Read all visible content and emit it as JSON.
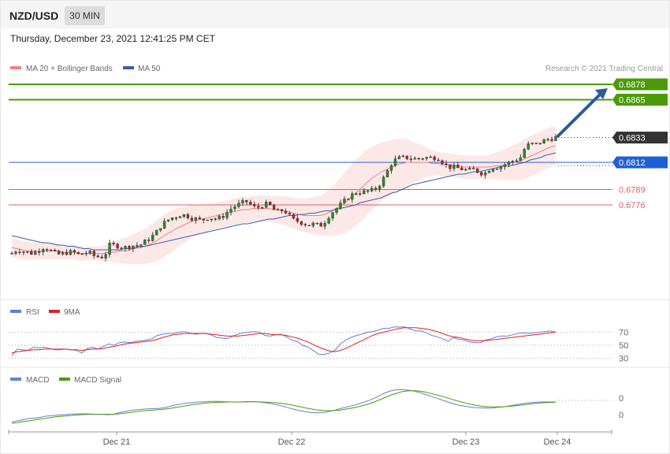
{
  "header": {
    "symbol": "NZD/USD",
    "timeframe": "30 MIN",
    "datetime": "Thursday, December 23, 2021 12:41:25 PM CET"
  },
  "legend": {
    "ma20": "MA 20 + Bollinger Bands",
    "ma50": "MA 50",
    "rsi": "RSI",
    "rsi_ma": "9MA",
    "macd": "MACD",
    "macd_signal": "MACD Signal"
  },
  "credit": "Research © 2021 Trading Central",
  "colors": {
    "ma20": "#f08080",
    "bands_fill": "#fde2e2",
    "ma50": "#3a5fa8",
    "resistance": "#4c9a0a",
    "pivot": "#1f5fd6",
    "support": "#e06060",
    "current": "#333333",
    "arrow": "#2d5a9a",
    "rsi": "#6080d8",
    "rsi_ma": "#e02020",
    "macd": "#6080d8",
    "macd_signal": "#4c9a0a"
  },
  "chart_data": [
    {
      "type": "candlestick",
      "panel": "price",
      "x_ticks": [
        "Dec 21",
        "Dec 22",
        "Dec 23",
        "Dec 24"
      ],
      "ylim": [
        0.6715,
        0.6895
      ],
      "levels": [
        {
          "value": 0.6878,
          "label": "0.6878",
          "kind": "resistance"
        },
        {
          "value": 0.6865,
          "label": "0.6865",
          "kind": "resistance"
        },
        {
          "value": 0.6833,
          "label": "0.6833",
          "kind": "current"
        },
        {
          "value": 0.6812,
          "label": "0.6812",
          "kind": "pivot"
        },
        {
          "value": 0.6789,
          "label": "0.6789",
          "kind": "support"
        },
        {
          "value": 0.6776,
          "label": "0.6776",
          "kind": "support"
        }
      ],
      "price_path": [
        0.6735,
        0.6738,
        0.6737,
        0.6736,
        0.6735,
        0.6737,
        0.674,
        0.6739,
        0.6736,
        0.6734,
        0.6735,
        0.6736,
        0.6736,
        0.6734,
        0.6735,
        0.6736,
        0.6733,
        0.6732,
        0.6732,
        0.6742,
        0.6742,
        0.6741,
        0.674,
        0.6741,
        0.6742,
        0.6742,
        0.6745,
        0.6748,
        0.6752,
        0.6758,
        0.6762,
        0.6765,
        0.6766,
        0.6768,
        0.6767,
        0.6765,
        0.6764,
        0.6763,
        0.6765,
        0.6765,
        0.6764,
        0.6766,
        0.677,
        0.6774,
        0.6776,
        0.6778,
        0.6779,
        0.6774,
        0.6774,
        0.6776,
        0.6777,
        0.6772,
        0.677,
        0.6772,
        0.6767,
        0.6763,
        0.6762,
        0.676,
        0.6759,
        0.676,
        0.6758,
        0.6762,
        0.6768,
        0.6772,
        0.6776,
        0.678,
        0.6784,
        0.6786,
        0.6787,
        0.6787,
        0.6788,
        0.679,
        0.6795,
        0.6803,
        0.6811,
        0.6815,
        0.6816,
        0.6816,
        0.6815,
        0.6815,
        0.6816,
        0.6816,
        0.6816,
        0.6816,
        0.6812,
        0.6808,
        0.6808,
        0.6807,
        0.6806,
        0.6805,
        0.6806,
        0.6804,
        0.6802,
        0.6806,
        0.6808,
        0.6808,
        0.681,
        0.6812,
        0.6814,
        0.6815,
        0.6824,
        0.6828,
        0.6827,
        0.6829,
        0.6831,
        0.6832,
        0.6833
      ],
      "ma20": [
        0.674,
        0.6739,
        0.6738,
        0.6737,
        0.6737,
        0.6737,
        0.6737,
        0.6737,
        0.6737,
        0.6737,
        0.6736,
        0.6736,
        0.6736,
        0.6735,
        0.6735,
        0.6735,
        0.6735,
        0.6735,
        0.6735,
        0.6736,
        0.6736,
        0.6737,
        0.6737,
        0.6738,
        0.6739,
        0.674,
        0.6741,
        0.6743,
        0.6745,
        0.6748,
        0.6751,
        0.6753,
        0.6756,
        0.6758,
        0.676,
        0.6762,
        0.6763,
        0.6764,
        0.6765,
        0.6766,
        0.6767,
        0.6768,
        0.6769,
        0.677,
        0.6771,
        0.6772,
        0.6772,
        0.6773,
        0.6773,
        0.6773,
        0.6773,
        0.6772,
        0.6772,
        0.6771,
        0.677,
        0.6769,
        0.6768,
        0.6767,
        0.6767,
        0.6767,
        0.6767,
        0.6768,
        0.677,
        0.6772,
        0.6775,
        0.6778,
        0.6782,
        0.6786,
        0.679,
        0.6794,
        0.6798,
        0.6801,
        0.6804,
        0.6806,
        0.6808,
        0.681,
        0.6811,
        0.6812,
        0.6812,
        0.6812,
        0.6812,
        0.6812,
        0.6811,
        0.6811,
        0.681,
        0.681,
        0.6809,
        0.6809,
        0.6808,
        0.6808,
        0.6808,
        0.6808,
        0.6808,
        0.6808,
        0.6809,
        0.6809,
        0.681,
        0.6811,
        0.6812,
        0.6813,
        0.6815,
        0.6817,
        0.6819,
        0.6821,
        0.6823,
        0.6825,
        0.6826
      ],
      "band_width": [
        0.0008,
        0.0008,
        0.0008,
        0.0008,
        0.0007,
        0.0007,
        0.0007,
        0.0007,
        0.0007,
        0.0007,
        0.0006,
        0.0006,
        0.0006,
        0.0006,
        0.0006,
        0.0006,
        0.0006,
        0.0006,
        0.0007,
        0.0008,
        0.0009,
        0.001,
        0.0011,
        0.0012,
        0.0013,
        0.0014,
        0.0015,
        0.0016,
        0.0017,
        0.0018,
        0.0018,
        0.0018,
        0.0017,
        0.0016,
        0.0015,
        0.0014,
        0.0013,
        0.0012,
        0.0012,
        0.0011,
        0.0011,
        0.0011,
        0.0011,
        0.0011,
        0.0011,
        0.0011,
        0.0011,
        0.0011,
        0.0011,
        0.0011,
        0.0011,
        0.0011,
        0.0012,
        0.0012,
        0.0013,
        0.0013,
        0.0014,
        0.0014,
        0.0015,
        0.0016,
        0.0017,
        0.0018,
        0.002,
        0.0022,
        0.0024,
        0.0026,
        0.0027,
        0.0028,
        0.0028,
        0.0028,
        0.0027,
        0.0026,
        0.0025,
        0.0024,
        0.0023,
        0.0022,
        0.0021,
        0.002,
        0.0018,
        0.0016,
        0.0014,
        0.0012,
        0.0011,
        0.001,
        0.001,
        0.001,
        0.001,
        0.001,
        0.001,
        0.001,
        0.001,
        0.001,
        0.001,
        0.001,
        0.0011,
        0.0012,
        0.0013,
        0.0014,
        0.0015,
        0.0016,
        0.0017,
        0.0017,
        0.0017,
        0.0017,
        0.0017,
        0.0017,
        0.0016
      ],
      "ma50": [
        0.675,
        0.6749,
        0.6748,
        0.6747,
        0.6746,
        0.6745,
        0.6744,
        0.6744,
        0.6743,
        0.6742,
        0.6742,
        0.6741,
        0.6741,
        0.674,
        0.6739,
        0.6739,
        0.6738,
        0.6738,
        0.6738,
        0.6738,
        0.6738,
        0.6738,
        0.6739,
        0.6739,
        0.674,
        0.6741,
        0.6741,
        0.6742,
        0.6743,
        0.6744,
        0.6745,
        0.6746,
        0.6747,
        0.6748,
        0.6749,
        0.675,
        0.6751,
        0.6752,
        0.6753,
        0.6754,
        0.6755,
        0.6756,
        0.6757,
        0.6758,
        0.6759,
        0.676,
        0.676,
        0.6761,
        0.6762,
        0.6763,
        0.6764,
        0.6764,
        0.6765,
        0.6766,
        0.6767,
        0.6767,
        0.6768,
        0.6768,
        0.6769,
        0.6769,
        0.677,
        0.6771,
        0.6771,
        0.6772,
        0.6773,
        0.6774,
        0.6775,
        0.6776,
        0.6778,
        0.6779,
        0.678,
        0.6781,
        0.6782,
        0.6784,
        0.6786,
        0.6787,
        0.6789,
        0.6791,
        0.6793,
        0.6794,
        0.6795,
        0.6796,
        0.6797,
        0.6798,
        0.6799,
        0.68,
        0.6801,
        0.6802,
        0.6802,
        0.6803,
        0.6804,
        0.6804,
        0.6805,
        0.6806,
        0.6807,
        0.6808,
        0.6809,
        0.6809,
        0.681,
        0.6811,
        0.6812,
        0.6814,
        0.6815,
        0.6816,
        0.6818,
        0.6819,
        0.682
      ]
    },
    {
      "type": "line",
      "panel": "rsi",
      "y_ticks": [
        "70",
        "50",
        "30"
      ],
      "ylim": [
        20,
        82
      ],
      "series": [
        {
          "name": "RSI",
          "values": [
            34,
            44,
            43,
            42,
            47,
            46,
            47,
            45,
            43,
            43,
            44,
            43,
            42,
            38,
            45,
            47,
            44,
            48,
            52,
            50,
            54,
            55,
            54,
            56,
            57,
            58,
            60,
            65,
            67,
            68,
            68,
            70,
            71,
            69,
            67,
            68,
            68,
            66,
            62,
            61,
            60,
            64,
            67,
            69,
            70,
            71,
            70,
            65,
            64,
            66,
            67,
            63,
            58,
            56,
            50,
            47,
            42,
            36,
            36,
            38,
            42,
            52,
            58,
            62,
            65,
            67,
            70,
            71,
            73,
            76,
            76,
            78,
            78,
            78,
            75,
            72,
            72,
            69,
            65,
            63,
            60,
            56,
            62,
            59,
            58,
            55,
            54,
            54,
            58,
            60,
            63,
            64,
            64,
            66,
            68,
            69,
            68,
            69,
            70,
            71,
            72,
            70
          ]
        },
        {
          "name": "9MA",
          "values": [
            38,
            40,
            41,
            42,
            43,
            43,
            44,
            44,
            44,
            44,
            44,
            43,
            43,
            42,
            43,
            44,
            44,
            45,
            47,
            48,
            50,
            52,
            53,
            54,
            55,
            56,
            57,
            59,
            62,
            64,
            66,
            67,
            68,
            68,
            68,
            68,
            68,
            67,
            66,
            65,
            64,
            64,
            64,
            65,
            66,
            67,
            68,
            68,
            67,
            66,
            66,
            65,
            63,
            61,
            58,
            55,
            51,
            47,
            44,
            41,
            40,
            42,
            45,
            49,
            53,
            57,
            61,
            65,
            68,
            70,
            72,
            74,
            76,
            77,
            77,
            77,
            76,
            75,
            73,
            71,
            68,
            65,
            63,
            62,
            60,
            58,
            57,
            57,
            57,
            58,
            59,
            60,
            61,
            62,
            63,
            64,
            65,
            66,
            67,
            68,
            69,
            70
          ]
        }
      ]
    },
    {
      "type": "line",
      "panel": "macd",
      "y_ticks": [
        "0",
        "0"
      ],
      "ylim": [
        -0.6,
        1.0
      ],
      "series": [
        {
          "name": "MACD",
          "values": [
            -0.55,
            -0.5,
            -0.45,
            -0.4,
            -0.38,
            -0.35,
            -0.3,
            -0.28,
            -0.26,
            -0.24,
            -0.22,
            -0.21,
            -0.2,
            -0.2,
            -0.21,
            -0.22,
            -0.23,
            -0.24,
            -0.22,
            -0.15,
            -0.1,
            -0.06,
            -0.03,
            -0.01,
            0.01,
            0.02,
            0.03,
            0.06,
            0.12,
            0.18,
            0.22,
            0.26,
            0.28,
            0.3,
            0.31,
            0.32,
            0.33,
            0.32,
            0.31,
            0.3,
            0.3,
            0.31,
            0.32,
            0.31,
            0.29,
            0.26,
            0.22,
            0.17,
            0.11,
            0.04,
            -0.02,
            -0.08,
            -0.12,
            -0.15,
            -0.16,
            -0.14,
            -0.1,
            -0.05,
            0.02,
            0.08,
            0.14,
            0.2,
            0.28,
            0.36,
            0.46,
            0.58,
            0.7,
            0.78,
            0.82,
            0.82,
            0.8,
            0.76,
            0.7,
            0.62,
            0.54,
            0.46,
            0.38,
            0.3,
            0.22,
            0.16,
            0.12,
            0.08,
            0.06,
            0.05,
            0.04,
            0.05,
            0.08,
            0.1,
            0.14,
            0.18,
            0.22,
            0.26,
            0.28,
            0.3,
            0.3,
            0.3,
            0.3
          ]
        },
        {
          "name": "MACD Signal",
          "values": [
            -0.6,
            -0.57,
            -0.53,
            -0.5,
            -0.46,
            -0.42,
            -0.39,
            -0.35,
            -0.32,
            -0.3,
            -0.28,
            -0.26,
            -0.24,
            -0.23,
            -0.22,
            -0.22,
            -0.22,
            -0.22,
            -0.22,
            -0.2,
            -0.17,
            -0.14,
            -0.11,
            -0.08,
            -0.06,
            -0.04,
            -0.02,
            0.0,
            0.03,
            0.07,
            0.11,
            0.15,
            0.19,
            0.22,
            0.25,
            0.27,
            0.28,
            0.29,
            0.3,
            0.3,
            0.3,
            0.3,
            0.31,
            0.31,
            0.3,
            0.29,
            0.28,
            0.26,
            0.23,
            0.19,
            0.14,
            0.09,
            0.04,
            0.0,
            -0.04,
            -0.06,
            -0.07,
            -0.06,
            -0.04,
            0.0,
            0.04,
            0.09,
            0.15,
            0.22,
            0.3,
            0.4,
            0.5,
            0.6,
            0.68,
            0.74,
            0.77,
            0.78,
            0.76,
            0.72,
            0.66,
            0.6,
            0.54,
            0.46,
            0.39,
            0.32,
            0.26,
            0.2,
            0.16,
            0.12,
            0.1,
            0.09,
            0.09,
            0.1,
            0.12,
            0.14,
            0.17,
            0.2,
            0.23,
            0.25,
            0.27,
            0.28,
            0.29
          ]
        }
      ]
    }
  ]
}
